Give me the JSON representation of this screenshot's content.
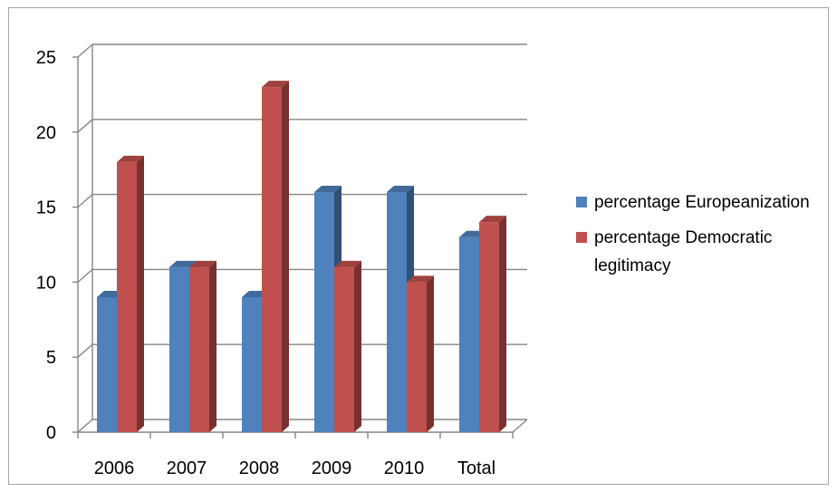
{
  "chart_data": {
    "type": "bar",
    "title": "",
    "xlabel": "",
    "ylabel": "",
    "categories": [
      "2006",
      "2007",
      "2008",
      "2009",
      "2010",
      "Total"
    ],
    "ylim": [
      0,
      25
    ],
    "yticks": [
      "0",
      "5",
      "10",
      "15",
      "20",
      "25"
    ],
    "grid": true,
    "legend_position": "right",
    "style": "3d-clustered-column",
    "series": [
      {
        "name": "percentage Europeanization",
        "values": [
          9,
          11,
          9,
          16,
          16,
          13
        ],
        "color": "#4f81bd"
      },
      {
        "name": "percentage Democratic legitimacy",
        "values": [
          18,
          11,
          23,
          11,
          10,
          14
        ],
        "color": "#c0504d"
      }
    ]
  }
}
